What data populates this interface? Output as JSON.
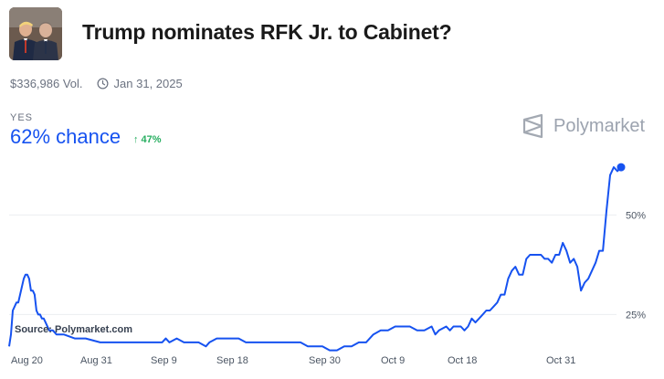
{
  "header": {
    "title": "Trump nominates RFK Jr. to Cabinet?",
    "thumbnail_icon": "candidates-photo-icon"
  },
  "meta": {
    "volume": "$336,986 Vol.",
    "end_date": "Jan 31, 2025"
  },
  "outcome": {
    "label": "YES",
    "chance": "62% chance",
    "change": "↑ 47%"
  },
  "brand": {
    "name": "Polymarket"
  },
  "source_label": "Source: Polymarket.com",
  "colors": {
    "line": "#1652f0",
    "change": "#27ae60"
  },
  "chart_data": {
    "type": "line",
    "title": "",
    "xlabel": "",
    "ylabel": "",
    "x_ticks": [
      "Aug 20",
      "Aug 31",
      "Sep 9",
      "Sep 18",
      "Sep 30",
      "Oct 9",
      "Oct 18",
      "Oct 31"
    ],
    "y_ticks": [
      {
        "value": 25,
        "label": "25%"
      },
      {
        "value": 50,
        "label": "50%"
      }
    ],
    "ylim": [
      15,
      65
    ],
    "grid": true,
    "series": [
      {
        "values": [
          [
            0,
            17
          ],
          [
            1,
            20
          ],
          [
            2,
            26
          ],
          [
            3,
            27
          ],
          [
            4,
            28
          ],
          [
            5,
            28
          ],
          [
            6,
            30
          ],
          [
            7,
            32
          ],
          [
            8,
            34
          ],
          [
            9,
            35
          ],
          [
            10,
            35
          ],
          [
            11,
            34
          ],
          [
            12,
            31
          ],
          [
            13,
            31
          ],
          [
            14,
            30
          ],
          [
            15,
            26
          ],
          [
            16,
            25
          ],
          [
            17,
            25
          ],
          [
            18,
            24
          ],
          [
            19,
            24
          ],
          [
            20,
            23
          ],
          [
            22,
            21
          ],
          [
            24,
            21
          ],
          [
            26,
            20
          ],
          [
            30,
            20
          ],
          [
            36,
            19
          ],
          [
            42,
            19
          ],
          [
            50,
            18
          ],
          [
            60,
            18
          ],
          [
            68,
            18
          ],
          [
            76,
            18
          ],
          [
            80,
            18
          ],
          [
            84,
            18
          ],
          [
            86,
            19
          ],
          [
            88,
            18
          ],
          [
            92,
            19
          ],
          [
            96,
            18
          ],
          [
            100,
            18
          ],
          [
            104,
            18
          ],
          [
            108,
            17
          ],
          [
            110,
            18
          ],
          [
            114,
            19
          ],
          [
            118,
            19
          ],
          [
            122,
            19
          ],
          [
            126,
            19
          ],
          [
            130,
            18
          ],
          [
            134,
            18
          ],
          [
            138,
            18
          ],
          [
            142,
            18
          ],
          [
            150,
            18
          ],
          [
            160,
            18
          ],
          [
            164,
            17
          ],
          [
            168,
            17
          ],
          [
            172,
            17
          ],
          [
            176,
            16
          ],
          [
            180,
            16
          ],
          [
            184,
            17
          ],
          [
            188,
            17
          ],
          [
            192,
            18
          ],
          [
            196,
            18
          ],
          [
            200,
            20
          ],
          [
            204,
            21
          ],
          [
            208,
            21
          ],
          [
            212,
            22
          ],
          [
            216,
            22
          ],
          [
            220,
            22
          ],
          [
            224,
            21
          ],
          [
            228,
            21
          ],
          [
            232,
            22
          ],
          [
            234,
            20
          ],
          [
            236,
            21
          ],
          [
            240,
            22
          ],
          [
            242,
            21
          ],
          [
            244,
            22
          ],
          [
            248,
            22
          ],
          [
            250,
            21
          ],
          [
            252,
            22
          ],
          [
            254,
            24
          ],
          [
            256,
            23
          ],
          [
            258,
            24
          ],
          [
            260,
            25
          ],
          [
            262,
            26
          ],
          [
            264,
            26
          ],
          [
            266,
            27
          ],
          [
            268,
            28
          ],
          [
            270,
            30
          ],
          [
            272,
            30
          ],
          [
            274,
            34
          ],
          [
            276,
            36
          ],
          [
            278,
            37
          ],
          [
            280,
            35
          ],
          [
            282,
            35
          ],
          [
            284,
            39
          ],
          [
            286,
            40
          ],
          [
            290,
            40
          ],
          [
            292,
            40
          ],
          [
            294,
            39
          ],
          [
            296,
            39
          ],
          [
            298,
            38
          ],
          [
            300,
            40
          ],
          [
            302,
            40
          ],
          [
            304,
            43
          ],
          [
            306,
            41
          ],
          [
            308,
            38
          ],
          [
            310,
            39
          ],
          [
            312,
            37
          ],
          [
            314,
            31
          ],
          [
            316,
            33
          ],
          [
            318,
            34
          ],
          [
            320,
            36
          ],
          [
            322,
            38
          ],
          [
            324,
            41
          ],
          [
            326,
            41
          ],
          [
            328,
            51
          ],
          [
            330,
            60
          ],
          [
            332,
            62
          ],
          [
            334,
            61
          ],
          [
            336,
            62
          ]
        ]
      }
    ]
  }
}
